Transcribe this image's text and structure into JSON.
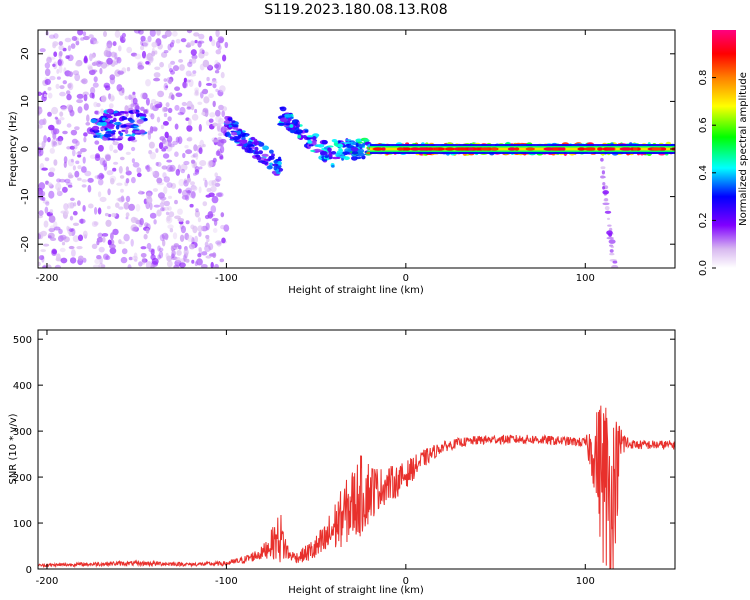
{
  "title": "S119.2023.180.08.13.R08",
  "chart_data": [
    {
      "type": "heatmap",
      "xlabel": "Height of straight line (km)",
      "ylabel": "Frequency (Hz)",
      "xlim": [
        -205,
        150
      ],
      "ylim": [
        -25,
        25
      ],
      "x_ticks": [
        -200,
        -100,
        0,
        100
      ],
      "y_ticks": [
        -20,
        -10,
        0,
        10,
        20
      ],
      "colorbar": {
        "label": "Normalized spectral amplitude",
        "range": [
          0,
          1
        ],
        "ticks": [
          0.0,
          0.2,
          0.4,
          0.6,
          0.8
        ],
        "colormap": "white-purple-blue-cyan-green-yellow-orange-red-magenta"
      },
      "features": [
        {
          "x_from": -205,
          "x_to": -100,
          "freq_center": 0,
          "freq_spread": 25,
          "amplitude": 0.15
        },
        {
          "x_from": -175,
          "x_to": -145,
          "freq_center": 5,
          "freq_spread": 3,
          "amplitude": 0.35
        },
        {
          "x_from": -100,
          "x_to": -70,
          "freq_center": 5,
          "freq_slope_per_km": -0.3,
          "amplitude": 0.35
        },
        {
          "x_from": -70,
          "x_to": -40,
          "freq_center": 7,
          "freq_slope_per_km": -0.3,
          "amplitude": 0.4
        },
        {
          "x_from": -40,
          "x_to": -20,
          "freq_center": 0,
          "freq_spread": 2,
          "amplitude": 0.45
        },
        {
          "x_from": -20,
          "x_to": 150,
          "freq_center": 0,
          "freq_spread": 1,
          "amplitude": 0.9
        },
        {
          "x_from": 108,
          "x_to": 118,
          "freq_center": 0,
          "freq_slope_per_km": -3,
          "amplitude": 0.15
        }
      ]
    },
    {
      "type": "line",
      "xlabel": "Height of straight line (km)",
      "ylabel": "SNR (10 * v/v)",
      "xlim": [
        -205,
        150
      ],
      "ylim": [
        0,
        520
      ],
      "x_ticks": [
        -200,
        -100,
        0,
        100
      ],
      "y_ticks": [
        0,
        100,
        200,
        300,
        400,
        500
      ],
      "color": "#e8302c",
      "series": [
        {
          "x": [
            -205,
            -180,
            -160,
            -140,
            -120,
            -100,
            -90,
            -80,
            -75,
            -70,
            -65,
            -60,
            -55,
            -50,
            -45,
            -40,
            -35,
            -30,
            -25,
            -20,
            -15,
            -10,
            -5,
            0,
            10,
            20,
            30,
            40,
            50,
            60,
            70,
            80,
            90,
            100,
            105,
            110,
            115,
            120,
            125,
            130,
            140,
            150
          ],
          "y": [
            8,
            10,
            12,
            12,
            10,
            12,
            20,
            35,
            55,
            70,
            30,
            25,
            35,
            45,
            60,
            90,
            115,
            140,
            160,
            170,
            175,
            185,
            190,
            205,
            240,
            265,
            275,
            280,
            282,
            282,
            282,
            280,
            278,
            275,
            250,
            200,
            150,
            275,
            272,
            270,
            270,
            270
          ],
          "noise": [
            3,
            4,
            5,
            5,
            4,
            5,
            8,
            15,
            30,
            60,
            12,
            12,
            20,
            30,
            40,
            55,
            65,
            80,
            90,
            70,
            45,
            40,
            35,
            30,
            20,
            12,
            10,
            10,
            10,
            10,
            10,
            10,
            10,
            10,
            80,
            200,
            200,
            40,
            10,
            10,
            10,
            10
          ]
        }
      ]
    }
  ]
}
